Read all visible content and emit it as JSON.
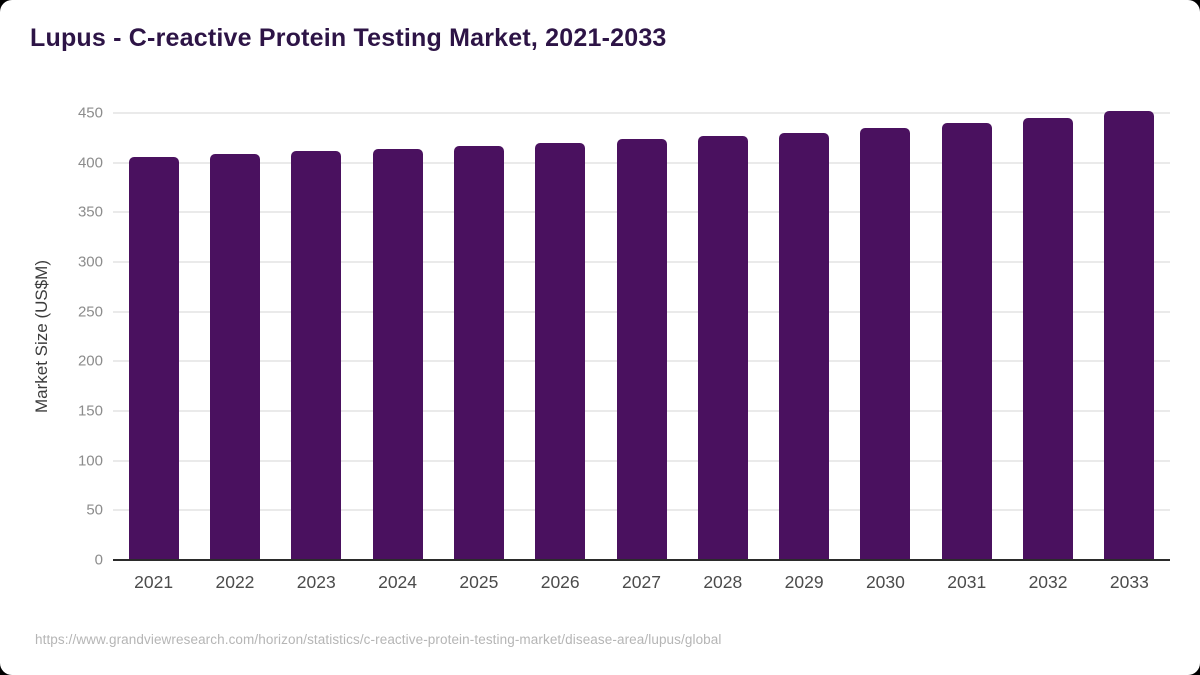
{
  "header": {
    "title": "Lupus - C-reactive Protein Testing Market, 2021-2033"
  },
  "footer": {
    "source_url": "https://www.grandviewresearch.com/horizon/statistics/c-reactive-protein-testing-market/disease-area/lupus/global"
  },
  "colors": {
    "page_bg": "#000000",
    "card_bg": "#ffffff",
    "title": "#2D1446",
    "bar": "#4A115F",
    "gridline": "#eaeaea",
    "axis_line": "#2b2b2b",
    "x_tick": "#4b4b4b",
    "y_tick": "#8c8c8c",
    "y_axis_title": "#3c3c3c",
    "source": "#b5b5b5"
  },
  "chart_data": {
    "type": "bar",
    "title": "Lupus - C-reactive Protein Testing Market, 2021-2033",
    "categories": [
      "2021",
      "2022",
      "2023",
      "2024",
      "2025",
      "2026",
      "2027",
      "2028",
      "2029",
      "2030",
      "2031",
      "2032",
      "2033"
    ],
    "values": [
      406,
      409,
      412,
      414,
      417,
      420,
      424,
      427,
      430,
      435,
      440,
      445,
      452
    ],
    "xlabel": "",
    "ylabel": "Market Size (US$M)",
    "ylim": [
      0,
      450
    ],
    "ytick_step": 50,
    "grid": true,
    "legend": false
  }
}
